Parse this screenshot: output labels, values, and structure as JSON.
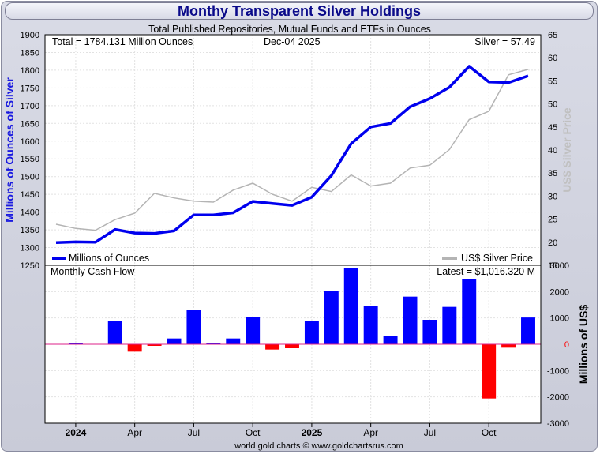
{
  "title": "Monthy Transparent Silver Holdings",
  "subtitle": "Total Published Repositories, Mutual Funds and ETFs in Ounces",
  "total_label": "Total = 1784.131 Million Ounces",
  "date_label": "Dec-04  2025",
  "silver_label": "Silver = 57.49",
  "left_axis_label": "Millions of Ounces of Silver",
  "right_axis_label": "US$ Silver Price",
  "right_axis2_label": "Millions of US$",
  "legend_holdings": "Millions of Ounces",
  "legend_price": "US$ Silver Price",
  "cashflow_title": "Monthly Cash Flow",
  "latest_label": "Latest = $1,016.320 M",
  "footer": "world gold charts © www.goldchartsrus.com",
  "colors": {
    "holdings": "#0000ee",
    "price": "#b4b4b4",
    "inflow": "#0000ff",
    "outflow": "#ff0000",
    "title": "#0a0a8a"
  },
  "chart_data": [
    {
      "type": "line",
      "x": [
        "Dec 2023",
        "Jan 2024",
        "Feb 2024",
        "Mar 2024",
        "Apr 2024",
        "May 2024",
        "Jun 2024",
        "Jul 2024",
        "Aug 2024",
        "Sep 2024",
        "Oct 2024",
        "Nov 2024",
        "Dec 2024",
        "Jan 2025",
        "Feb 2025",
        "Mar 2025",
        "Apr 2025",
        "May 2025",
        "Jun 2025",
        "Jul 2025",
        "Aug 2025",
        "Sep 2025",
        "Oct 2025",
        "Nov 2025",
        "Dec 2025"
      ],
      "x_tick_labels": [
        "2024",
        "Apr",
        "Jul",
        "Oct",
        "2025",
        "Apr",
        "Jul",
        "Oct"
      ],
      "series": [
        {
          "name": "Millions of Ounces",
          "axis": "left",
          "values": [
            1314,
            1316,
            1315,
            1351,
            1341,
            1340,
            1347,
            1392,
            1392,
            1398,
            1430,
            1424,
            1419,
            1442,
            1503,
            1593,
            1640,
            1650,
            1697,
            1720,
            1752,
            1811,
            1767,
            1765,
            1784
          ]
        },
        {
          "name": "US$ Silver Price",
          "axis": "right",
          "values": [
            23.9,
            23.0,
            22.6,
            24.9,
            26.3,
            30.6,
            29.6,
            28.9,
            28.7,
            31.3,
            32.8,
            30.4,
            28.9,
            31.9,
            31.0,
            34.6,
            32.2,
            32.8,
            36.1,
            36.7,
            40.1,
            46.6,
            48.4,
            56.3,
            57.49
          ]
        }
      ],
      "ylim_left": [
        1250,
        1900
      ],
      "yticks_left": [
        1250,
        1300,
        1350,
        1400,
        1450,
        1500,
        1550,
        1600,
        1650,
        1700,
        1750,
        1800,
        1850,
        1900
      ],
      "ylim_right": [
        15,
        65
      ],
      "yticks_right": [
        15,
        20,
        25,
        30,
        35,
        40,
        45,
        50,
        55,
        60,
        65
      ],
      "ylabel": "Millions of Ounces of Silver",
      "ylabel_right": "US$ Silver Price",
      "grid": true,
      "legend": "bottom"
    },
    {
      "type": "bar",
      "title": "Monthly Cash Flow",
      "x": [
        "Dec 2023",
        "Jan 2024",
        "Feb 2024",
        "Mar 2024",
        "Apr 2024",
        "May 2024",
        "Jun 2024",
        "Jul 2024",
        "Aug 2024",
        "Sep 2024",
        "Oct 2024",
        "Nov 2024",
        "Dec 2024",
        "Jan 2025",
        "Feb 2025",
        "Mar 2025",
        "Apr 2025",
        "May 2025",
        "Jun 2025",
        "Jul 2025",
        "Aug 2025",
        "Sep 2025",
        "Oct 2025",
        "Nov 2025",
        "Dec 2025"
      ],
      "values": [
        0,
        60,
        0,
        900,
        -280,
        -60,
        220,
        1290,
        30,
        220,
        1050,
        -200,
        -150,
        900,
        2030,
        2900,
        1450,
        320,
        1810,
        930,
        1420,
        2490,
        -2060,
        -130,
        1016.32
      ],
      "ylim": [
        -3000,
        3000
      ],
      "yticks": [
        -3000,
        -2000,
        -1000,
        0,
        1000,
        2000,
        3000
      ],
      "ylabel": "Millions of US$",
      "grid": true
    }
  ]
}
